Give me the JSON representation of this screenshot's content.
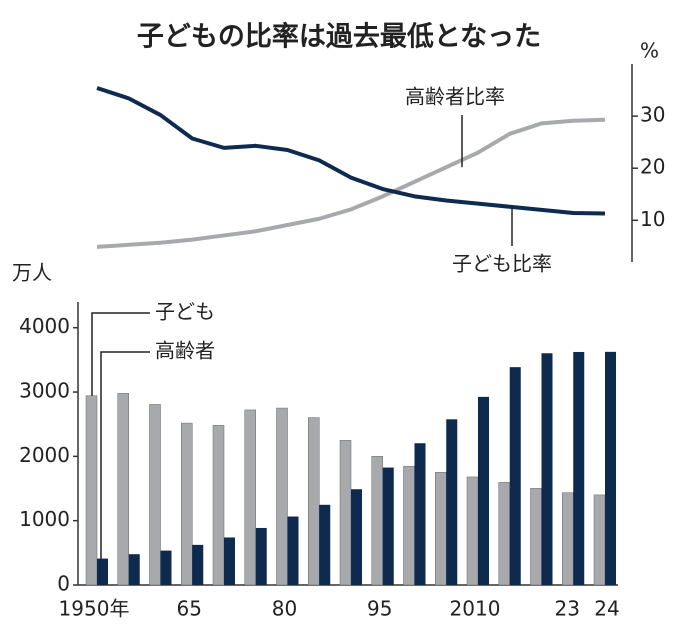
{
  "chart_data": [
    {
      "type": "line",
      "title": "子どもの比率は過去最低となった",
      "y2lim": [
        2,
        40
      ],
      "y2ticks": [
        10,
        20,
        30
      ],
      "y2_label": "%",
      "series": [
        {
          "name": "高齢者比率",
          "color": "#a7a9ac",
          "axis": "y2",
          "values": [
            4.9,
            5.3,
            5.7,
            6.3,
            7.1,
            7.9,
            9.1,
            10.3,
            12.1,
            14.6,
            17.4,
            20.2,
            23.0,
            26.6,
            28.6,
            29.1,
            29.3
          ]
        },
        {
          "name": "子ども比率",
          "color": "#0e2a4f",
          "axis": "y2",
          "values": [
            35.4,
            33.4,
            30.2,
            25.7,
            23.9,
            24.3,
            23.5,
            21.5,
            18.2,
            16.0,
            14.6,
            13.8,
            13.2,
            12.6,
            12.0,
            11.4,
            11.3
          ]
        }
      ]
    },
    {
      "type": "bar",
      "y_label": "万人",
      "categories": [
        "1950年",
        null,
        null,
        "65",
        null,
        null,
        "80",
        null,
        null,
        "95",
        null,
        null,
        "2010",
        null,
        null,
        "23",
        "24"
      ],
      "ylim": [
        0,
        4400
      ],
      "yticks": [
        0,
        1000,
        2000,
        3000,
        4000
      ],
      "series": [
        {
          "name": "子ども",
          "color": "#a7a9ac",
          "values": [
            2943,
            2980,
            2807,
            2517,
            2482,
            2722,
            2751,
            2603,
            2249,
            2001,
            1847,
            1752,
            1680,
            1595,
            1503,
            1435,
            1401
          ]
        },
        {
          "name": "高齢者",
          "color": "#0e2a4f",
          "values": [
            411,
            479,
            535,
            624,
            739,
            887,
            1065,
            1247,
            1489,
            1826,
            2204,
            2576,
            2925,
            3387,
            3603,
            3623,
            3625
          ]
        }
      ]
    }
  ]
}
